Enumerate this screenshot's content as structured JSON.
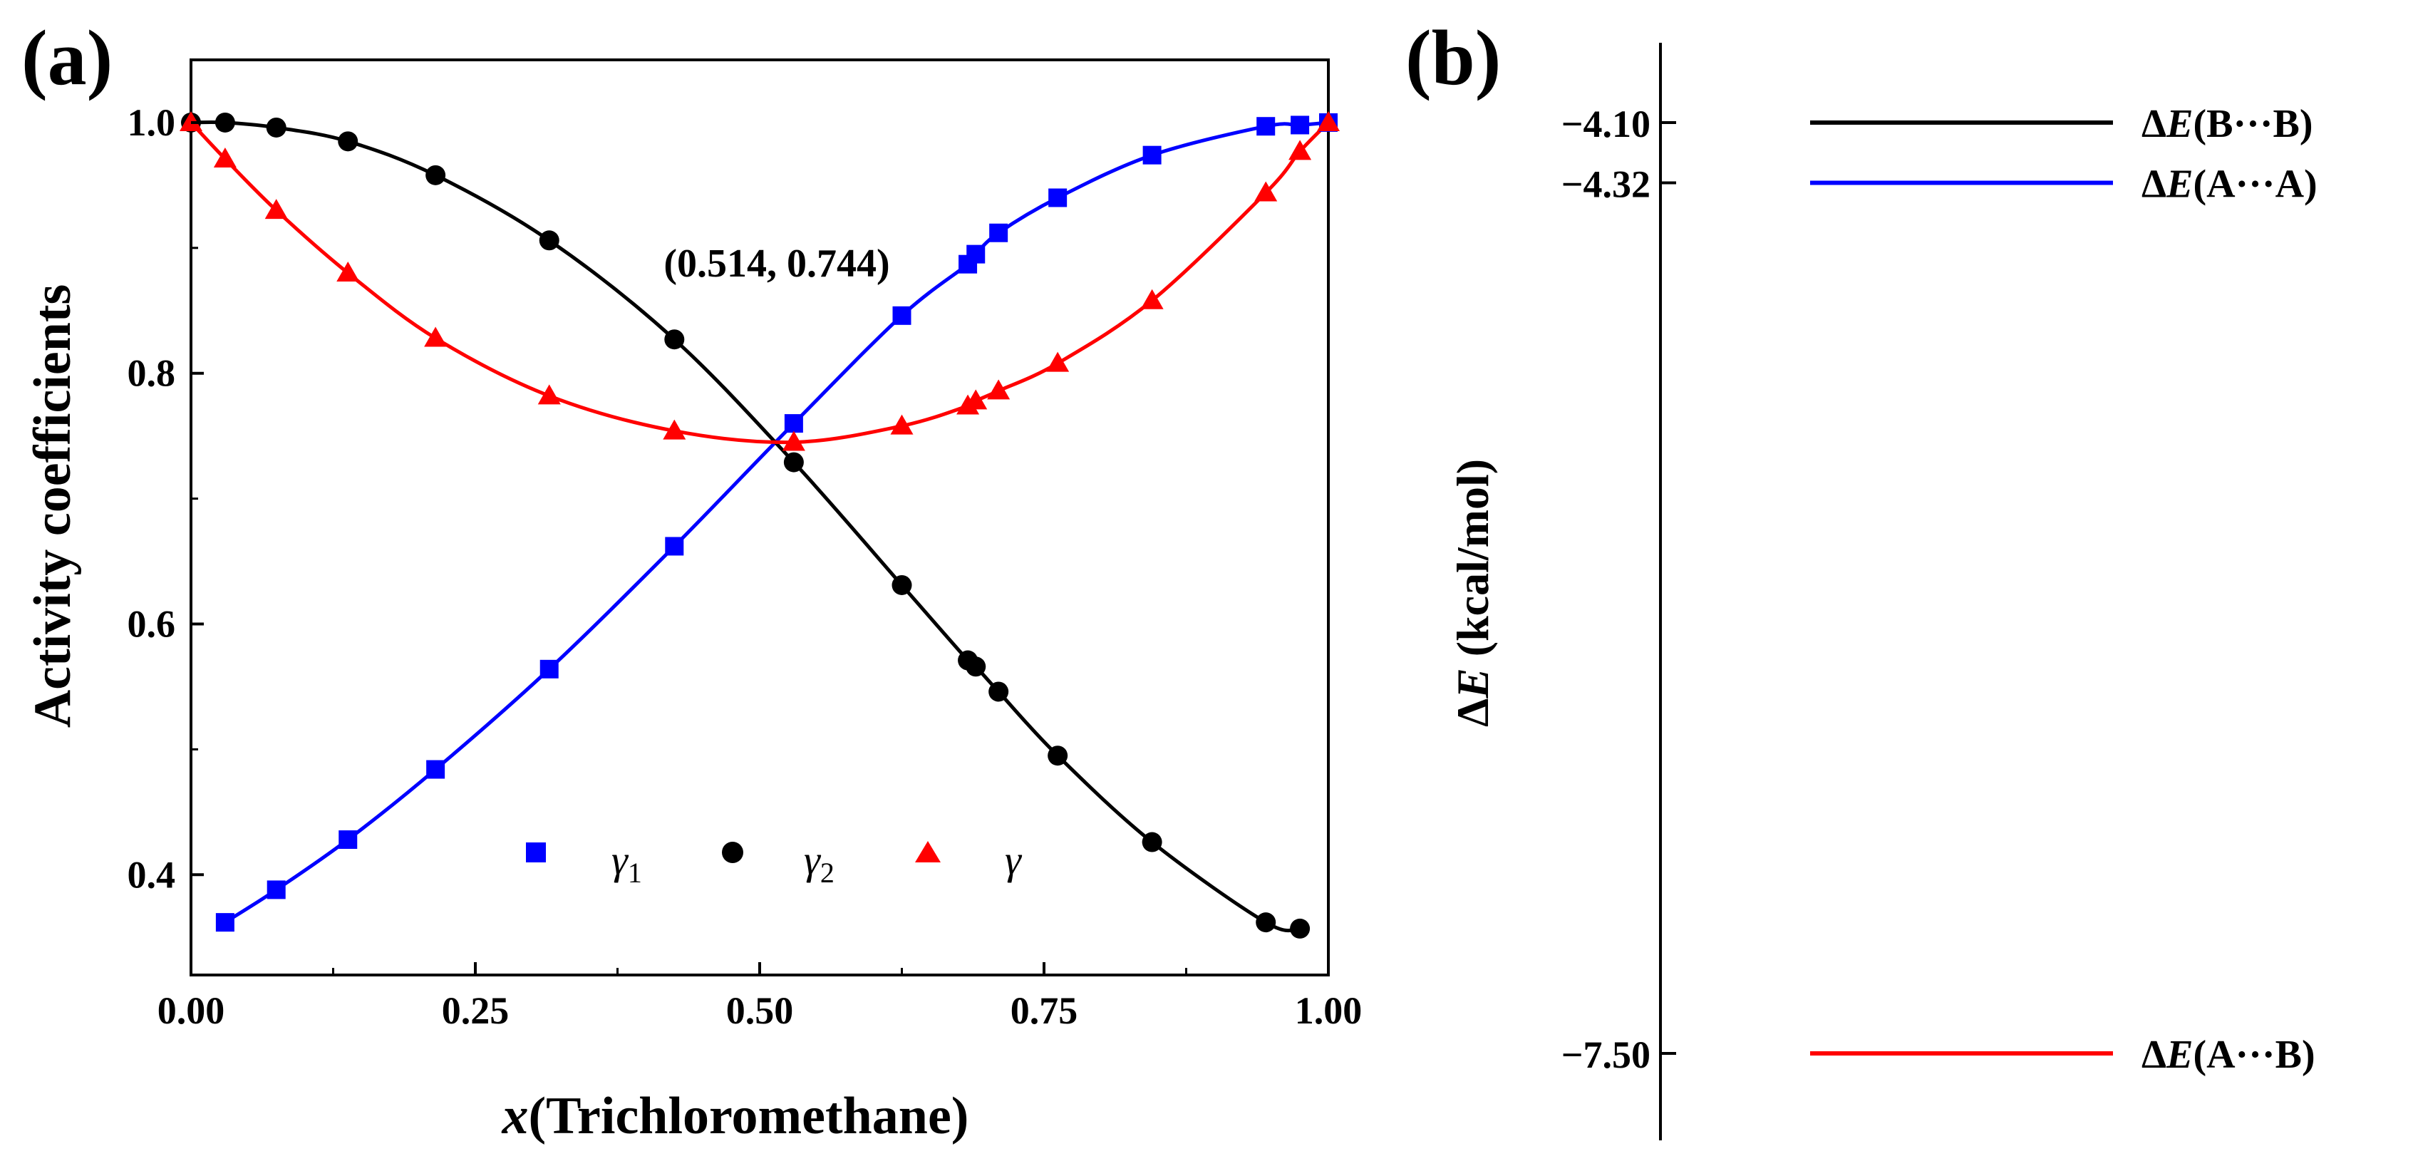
{
  "figure": {
    "panel_a_label": "(a)",
    "panel_b_label": "(b)"
  },
  "colors": {
    "gamma1": "#0000ff",
    "gamma2": "#000000",
    "gamma": "#ff0000",
    "axis": "#000000"
  },
  "chart_data": [
    {
      "type": "line",
      "panel": "(a)",
      "title": "",
      "xlabel_var": "x",
      "xlabel_rest": "(Trichloromethane)",
      "ylabel": "Activity coefficients",
      "xlim": [
        0.0,
        1.0
      ],
      "ylim": [
        0.32,
        1.05
      ],
      "xticks": [
        0.0,
        0.25,
        0.5,
        0.75,
        1.0
      ],
      "xtick_labels": [
        "0.00",
        "0.25",
        "0.50",
        "0.75",
        "1.00"
      ],
      "yticks": [
        0.4,
        0.6,
        0.8,
        1.0
      ],
      "ytick_labels": [
        "0.4",
        "0.6",
        "0.8",
        "1.0"
      ],
      "annotation": {
        "text": "(0.514, 0.744)",
        "x": 0.514,
        "y": 0.744
      },
      "legend_placement": "bottom-center",
      "series": [
        {
          "key": "gamma1",
          "name_main": "γ",
          "name_sub": "1",
          "marker": "square",
          "x": [
            0.03,
            0.075,
            0.138,
            0.215,
            0.315,
            0.425,
            0.53,
            0.625,
            0.683,
            0.69,
            0.71,
            0.762,
            0.845,
            0.945,
            0.975,
            1.0
          ],
          "y": [
            0.362,
            0.388,
            0.428,
            0.484,
            0.564,
            0.662,
            0.76,
            0.846,
            0.887,
            0.895,
            0.912,
            0.94,
            0.974,
            0.997,
            0.998,
            1.0
          ]
        },
        {
          "key": "gamma2",
          "name_main": "γ",
          "name_sub": "2",
          "marker": "circle",
          "x": [
            0.0,
            0.03,
            0.075,
            0.138,
            0.215,
            0.315,
            0.425,
            0.53,
            0.625,
            0.683,
            0.69,
            0.71,
            0.762,
            0.845,
            0.945,
            0.975
          ],
          "y": [
            1.0,
            1.0,
            0.996,
            0.985,
            0.958,
            0.906,
            0.827,
            0.729,
            0.631,
            0.571,
            0.566,
            0.546,
            0.495,
            0.426,
            0.362,
            0.357
          ]
        },
        {
          "key": "gamma",
          "name_main": "γ",
          "name_sub": "",
          "marker": "triangle",
          "x": [
            0.0,
            0.03,
            0.075,
            0.138,
            0.215,
            0.315,
            0.425,
            0.53,
            0.625,
            0.683,
            0.69,
            0.71,
            0.762,
            0.845,
            0.945,
            0.975,
            1.0
          ],
          "y": [
            1.0,
            0.971,
            0.93,
            0.88,
            0.828,
            0.782,
            0.754,
            0.745,
            0.758,
            0.774,
            0.778,
            0.786,
            0.808,
            0.858,
            0.944,
            0.977,
            1.0
          ]
        }
      ]
    },
    {
      "type": "energy-levels",
      "panel": "(b)",
      "ylabel_delta": "Δ",
      "ylabel_var": "E",
      "ylabel_rest": " (kcal/mol)",
      "levels": [
        {
          "key": "gamma2",
          "value": -4.1,
          "tick_label": "−4.10",
          "label_pre": "Δ",
          "label_var": "E",
          "label_rest": "(B···B)"
        },
        {
          "key": "gamma1",
          "value": -4.32,
          "tick_label": "−4.32",
          "label_pre": "Δ",
          "label_var": "E",
          "label_rest": "(A···A)"
        },
        {
          "key": "gamma",
          "value": -7.5,
          "tick_label": "−7.50",
          "label_pre": "Δ",
          "label_var": "E",
          "label_rest": "(A···B)"
        }
      ]
    }
  ]
}
